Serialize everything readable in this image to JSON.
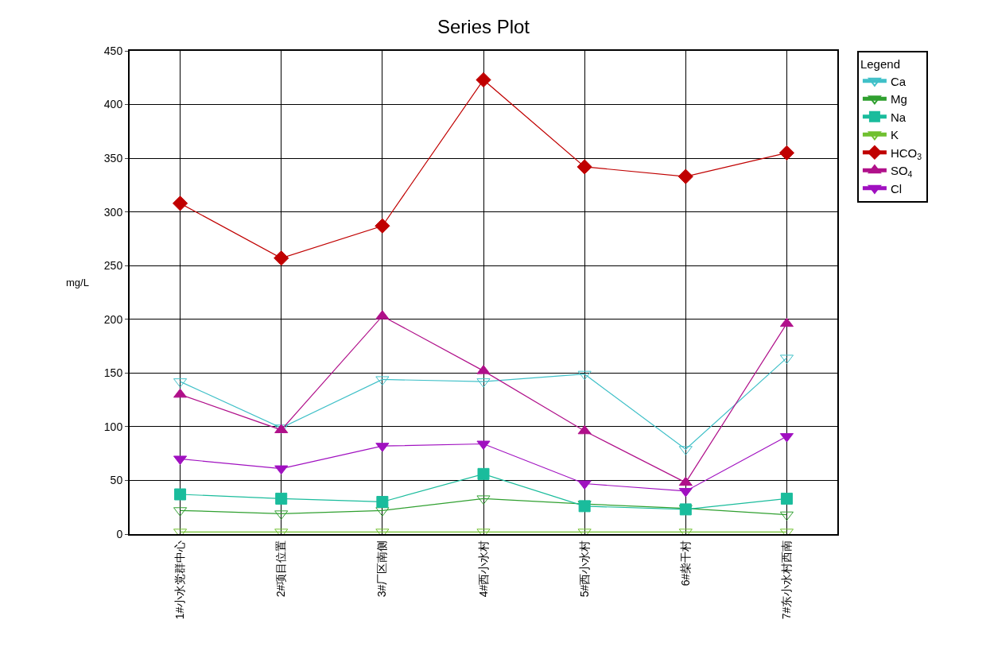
{
  "chart_data": {
    "type": "line",
    "title": "Series Plot",
    "ylabel": "mg/L",
    "legend_title": "Legend",
    "categories": [
      "1#小水党群中心",
      "2#项目位置",
      "3#厂区南侧",
      "4#西小水村",
      "5#西小水村",
      "6#柴干村",
      "7#东小水村西南"
    ],
    "ylim": [
      0,
      450
    ],
    "yticks": [
      0,
      50,
      100,
      150,
      200,
      250,
      300,
      350,
      400,
      450
    ],
    "grid": true,
    "legend": "top right",
    "series": [
      {
        "name": "Ca",
        "color": "#40c0c8",
        "marker": "triangle-down-open",
        "values": [
          142,
          99,
          144,
          142,
          149,
          79,
          164
        ]
      },
      {
        "name": "Mg",
        "color": "#30a030",
        "marker": "triangle-down-open",
        "values": [
          22,
          19,
          22,
          33,
          28,
          24,
          18
        ]
      },
      {
        "name": "Na",
        "color": "#1abc9c",
        "marker": "square",
        "values": [
          37,
          33,
          30,
          56,
          26,
          23,
          33
        ]
      },
      {
        "name": "K",
        "color": "#70c030",
        "marker": "triangle-down-open",
        "values": [
          2,
          2,
          2,
          2,
          2,
          2,
          2
        ]
      },
      {
        "name": "HCO$_{3}$",
        "color": "#c00000",
        "marker": "diamond",
        "values": [
          308,
          257,
          287,
          423,
          342,
          333,
          355
        ]
      },
      {
        "name": "SO$_{4}$",
        "color": "#b0108a",
        "marker": "triangle",
        "values": [
          130,
          97,
          203,
          152,
          96,
          48,
          196
        ]
      },
      {
        "name": "Cl",
        "color": "#a010c0",
        "marker": "triangle-down",
        "values": [
          70,
          61,
          82,
          84,
          47,
          40,
          91
        ]
      }
    ]
  }
}
